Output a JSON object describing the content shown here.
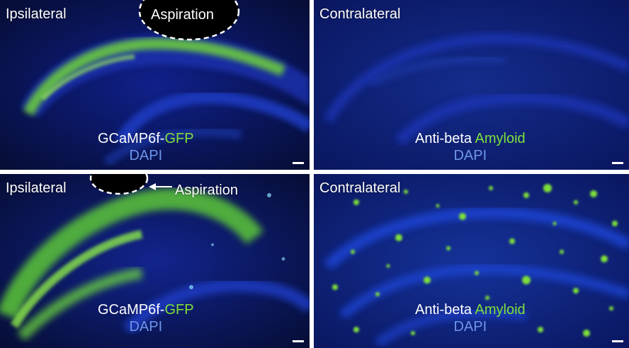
{
  "panels": {
    "top_left": {
      "region_label": "Ipsilateral",
      "aspiration_label": "Aspiration",
      "stain_prefix": "GCaMP6f-",
      "stain_marker": "GFP",
      "counterstain": "DAPI"
    },
    "top_right": {
      "region_label": "Contralateral",
      "stain_prefix": "Anti-beta ",
      "stain_marker": "Amyloid",
      "counterstain": "DAPI"
    },
    "bottom_left": {
      "region_label": "Ipsilateral",
      "aspiration_label": "Aspiration",
      "stain_prefix": "GCaMP6f-",
      "stain_marker": "GFP",
      "counterstain": "DAPI"
    },
    "bottom_right": {
      "region_label": "Contralateral",
      "stain_prefix": "Anti-beta ",
      "stain_marker": "Amyloid",
      "counterstain": "DAPI"
    }
  },
  "colors": {
    "background": "#08103a",
    "dapi_blue": "#1f3fb5",
    "gfp_green": "#7ee03a",
    "label_white": "#ffffff"
  }
}
